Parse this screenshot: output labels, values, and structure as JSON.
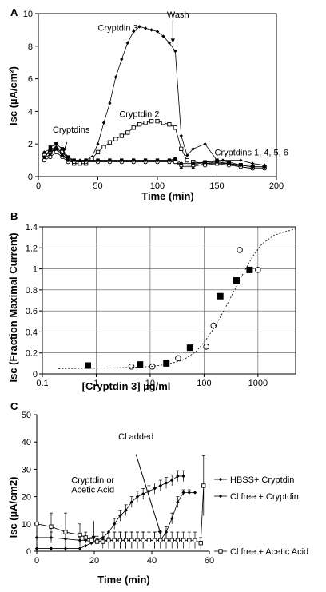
{
  "chart_data": [
    {
      "panel": "A",
      "type": "line",
      "xlabel": "Time  (min)",
      "ylabel": "Isc  (µA/cm²)",
      "xlim": [
        0,
        200
      ],
      "ylim": [
        0,
        10
      ],
      "xticks": [
        0,
        50,
        100,
        150,
        200
      ],
      "yticks": [
        0,
        2,
        4,
        6,
        8,
        10
      ],
      "grid": false,
      "annotations": [
        {
          "text": "Cryptdin 3",
          "x": 50,
          "y": 8.95
        },
        {
          "text": "Wash",
          "x": 108,
          "y": 9.75
        },
        {
          "text": "Cryptdin 2",
          "x": 68,
          "y": 3.65
        },
        {
          "text": "Cryptdins",
          "x": 12,
          "y": 2.7
        },
        {
          "text": "Cryptdins 1, 4, 5, 6",
          "x": 148,
          "y": 1.3
        }
      ],
      "arrows": [
        {
          "x1": 113,
          "y1": 9.6,
          "x2": 113,
          "y2": 8.2
        },
        {
          "x1": 24,
          "y1": 2.1,
          "x2": 21,
          "y2": 1.5
        }
      ],
      "series": [
        {
          "marker": "diamond",
          "x": [
            5,
            10,
            15,
            20,
            25,
            30,
            35,
            40,
            45,
            50,
            55,
            60,
            65,
            70,
            75,
            80,
            85,
            90,
            95,
            100,
            105,
            110,
            115,
            120,
            125,
            130,
            140,
            150,
            155,
            170,
            180,
            190
          ],
          "y": [
            1.5,
            1.7,
            1.8,
            1.6,
            1.1,
            1.0,
            1.0,
            1.0,
            1.2,
            2.0,
            3.3,
            4.5,
            6.1,
            7.2,
            8.2,
            8.9,
            9.2,
            9.1,
            9.0,
            8.9,
            8.6,
            8.2,
            7.7,
            2.5,
            1.3,
            1.7,
            2.0,
            1.0,
            1.0,
            1.0,
            0.8,
            0.7
          ]
        },
        {
          "marker": "square-open",
          "x": [
            5,
            10,
            15,
            20,
            25,
            30,
            35,
            40,
            45,
            50,
            55,
            60,
            65,
            70,
            75,
            80,
            85,
            90,
            95,
            100,
            105,
            110,
            115,
            120,
            125,
            130,
            140,
            150,
            160,
            170,
            180,
            190
          ],
          "y": [
            1.3,
            1.5,
            1.7,
            1.5,
            1.1,
            0.8,
            0.8,
            0.8,
            1.1,
            1.5,
            1.8,
            2.1,
            2.3,
            2.5,
            2.7,
            3.0,
            3.2,
            3.3,
            3.4,
            3.4,
            3.3,
            3.2,
            3.0,
            1.7,
            1.0,
            0.9,
            0.8,
            0.8,
            0.8,
            0.7,
            0.6,
            0.6
          ]
        },
        {
          "marker": "square-filled",
          "x": [
            5,
            10,
            15,
            20,
            25,
            30,
            40,
            50,
            60,
            70,
            80,
            90,
            100,
            110,
            115,
            120,
            130,
            140,
            150,
            160,
            170,
            180,
            190
          ],
          "y": [
            1.0,
            1.8,
            2.0,
            1.7,
            1.2,
            1.0,
            1.0,
            1.0,
            1.0,
            1.0,
            1.0,
            1.0,
            1.0,
            1.0,
            1.0,
            0.7,
            0.7,
            0.9,
            1.0,
            0.9,
            0.7,
            0.6,
            0.6
          ]
        },
        {
          "marker": "triangle",
          "x": [
            5,
            10,
            15,
            20,
            25,
            30,
            40,
            50,
            60,
            70,
            80,
            90,
            100,
            110,
            115,
            120,
            130,
            140,
            150,
            160,
            170,
            180,
            190
          ],
          "y": [
            1.1,
            1.4,
            1.8,
            1.4,
            1.0,
            0.9,
            0.9,
            0.9,
            0.9,
            0.9,
            0.9,
            0.9,
            0.9,
            0.9,
            0.9,
            0.6,
            0.6,
            0.8,
            0.9,
            0.8,
            0.6,
            0.5,
            0.5
          ]
        },
        {
          "marker": "circle-open",
          "x": [
            5,
            10,
            15,
            20,
            25,
            30,
            40,
            50,
            60,
            70,
            80,
            90,
            100,
            110,
            115,
            120,
            130,
            140,
            150,
            160,
            170,
            180,
            190
          ],
          "y": [
            1.0,
            1.2,
            1.5,
            1.2,
            0.9,
            0.9,
            0.9,
            0.9,
            0.9,
            0.9,
            0.9,
            0.9,
            0.9,
            0.9,
            0.9,
            0.7,
            0.7,
            0.7,
            0.8,
            0.7,
            0.6,
            0.5,
            0.5
          ]
        },
        {
          "marker": "circle-filled",
          "x": [
            5,
            10,
            15,
            20,
            25,
            30,
            40,
            50,
            60,
            70,
            80,
            90,
            100,
            110,
            115,
            120,
            130,
            140,
            150,
            160,
            170,
            180,
            190
          ],
          "y": [
            1.2,
            1.6,
            1.7,
            1.3,
            1.0,
            1.0,
            1.0,
            1.0,
            1.0,
            1.0,
            1.0,
            1.0,
            1.0,
            1.0,
            1.1,
            0.8,
            0.8,
            0.9,
            0.9,
            0.8,
            0.7,
            0.6,
            0.6
          ]
        }
      ]
    },
    {
      "panel": "B",
      "type": "scatter",
      "xlabel": "[Cryptdin 3]  µg/ml",
      "ylabel": "Isc  (Fraction Maximal Current)",
      "xscale": "log",
      "xlim": [
        0.1,
        5000
      ],
      "ylim": [
        0,
        1.4
      ],
      "xticks": [
        0.1,
        1,
        10,
        100,
        1000
      ],
      "xticklabels": [
        "0.1",
        "1",
        "10",
        "100",
        "1000"
      ],
      "yticks": [
        0,
        0.2,
        0.4,
        0.6,
        0.8,
        1,
        1.2,
        1.4
      ],
      "yticklabels": [
        "0",
        "0.2",
        "0.4",
        "0.6",
        "0.8",
        "1",
        "1.2",
        "1.4"
      ],
      "grid": true,
      "series": [
        {
          "marker": "square-filled",
          "x": [
            0.7,
            6.5,
            20,
            55,
            200,
            400,
            700
          ],
          "y": [
            0.08,
            0.09,
            0.1,
            0.25,
            0.74,
            0.89,
            0.99
          ]
        },
        {
          "marker": "circle-open",
          "x": [
            4.5,
            11,
            33,
            110,
            150,
            460,
            1000
          ],
          "y": [
            0.07,
            0.07,
            0.15,
            0.26,
            0.46,
            1.18,
            0.99
          ]
        },
        {
          "marker": "none",
          "dashed": true,
          "x": [
            0.2,
            1,
            3,
            10,
            20,
            40,
            70,
            100,
            150,
            200,
            300,
            500,
            800,
            1200,
            2000,
            3000,
            5000
          ],
          "y": [
            0.05,
            0.055,
            0.06,
            0.07,
            0.09,
            0.13,
            0.21,
            0.3,
            0.43,
            0.54,
            0.71,
            0.93,
            1.12,
            1.24,
            1.32,
            1.35,
            1.38
          ]
        }
      ]
    },
    {
      "panel": "C",
      "type": "line",
      "xlabel": "Time  (min)",
      "ylabel": "Isc  (µA/cm2)",
      "xlim": [
        0,
        60
      ],
      "ylim": [
        0,
        50
      ],
      "xticks": [
        0,
        20,
        40,
        60
      ],
      "yticks": [
        0,
        10,
        20,
        30,
        40,
        50
      ],
      "grid": false,
      "legend": [
        "HBSS+ Cryptdin",
        "Cl free + Cryptdin",
        "Cl free + Acetic Acid"
      ],
      "legend_placement": "right",
      "annotations": [
        {
          "text": "Cl added",
          "x": 34.5,
          "y": 41
        },
        {
          "text": "Cryptdin or",
          "x": 19.5,
          "y": 25
        },
        {
          "text": "Acetic Acid",
          "x": 19.5,
          "y": 21.5
        }
      ],
      "arrows": [
        {
          "x1": 34.5,
          "y1": 35.5,
          "x2": 43.2,
          "y2": 6
        },
        {
          "x1": 19.8,
          "y1": 11,
          "x2": 19.8,
          "y2": 4
        }
      ],
      "series": [
        {
          "name": "HBSS+ Cryptdin",
          "marker": "diamond",
          "x": [
            0,
            5,
            10,
            15,
            17,
            19,
            21,
            23,
            25,
            27,
            29,
            31,
            33,
            35,
            37,
            39,
            41,
            43,
            45,
            47,
            49,
            51
          ],
          "y": [
            5,
            5,
            4.5,
            4,
            4,
            3.5,
            4,
            5,
            7,
            10,
            13,
            15,
            18,
            20,
            21,
            22,
            23,
            24,
            25,
            26,
            27.5,
            27.5
          ],
          "err": [
            0,
            2,
            3,
            1,
            0,
            0,
            0,
            0,
            0,
            2,
            2,
            2,
            2,
            2,
            2,
            2,
            2,
            2,
            2,
            2,
            2,
            2
          ]
        },
        {
          "name": "Cl free + Cryptdin",
          "marker": "diamond",
          "x": [
            0,
            5,
            10,
            15,
            17,
            19,
            21,
            23,
            25,
            27,
            29,
            31,
            33,
            35,
            37,
            39,
            41,
            43,
            45,
            47,
            49,
            51,
            53,
            55
          ],
          "y": [
            1,
            1,
            1,
            1,
            2,
            3,
            3.5,
            4,
            4,
            4,
            4,
            4,
            4,
            4,
            4,
            4,
            4,
            4,
            7,
            12,
            18,
            21.5,
            21.5,
            21.5
          ],
          "err": [
            0,
            0,
            0,
            0,
            0,
            0,
            2,
            3,
            3,
            3,
            3,
            3,
            3,
            3,
            3,
            3,
            3,
            3,
            2,
            2,
            2,
            1,
            1,
            0
          ]
        },
        {
          "name": "Cl free + Acetic Acid",
          "marker": "square-open",
          "x": [
            0,
            5,
            10,
            15,
            17,
            19,
            21,
            23,
            25,
            27,
            29,
            31,
            33,
            35,
            37,
            39,
            41,
            43,
            45,
            47,
            49,
            51,
            53,
            55,
            57,
            58
          ],
          "y": [
            10,
            9,
            7,
            6,
            5,
            4,
            3.5,
            3.5,
            4,
            4,
            4,
            4,
            4,
            4,
            4,
            4,
            4,
            4,
            4,
            4,
            4,
            4,
            4,
            4,
            3,
            24
          ],
          "err": [
            0,
            5,
            7,
            4,
            2,
            1,
            1,
            1,
            1,
            3,
            3,
            3,
            3,
            3,
            3,
            3,
            3,
            3,
            3,
            3,
            3,
            3,
            3,
            3,
            2,
            11
          ]
        }
      ]
    }
  ],
  "panel_labels": [
    "A",
    "B",
    "C"
  ]
}
